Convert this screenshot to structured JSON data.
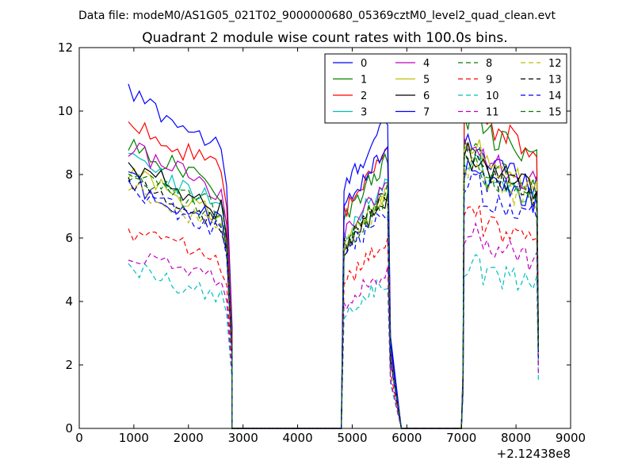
{
  "chart_data": {
    "type": "line",
    "suptitle": "Data file: modeM0/AS1G05_021T02_9000000680_05369cztM0_level2_quad_clean.evt",
    "title": "Quadrant 2 module wise count rates with 100.0s bins.",
    "xlabel": "",
    "ylabel": "",
    "x_offset_label": "+2.12438e8",
    "xlim": [
      0,
      9000
    ],
    "ylim": [
      0,
      12
    ],
    "xticks": [
      0,
      1000,
      2000,
      3000,
      4000,
      5000,
      6000,
      7000,
      8000,
      9000
    ],
    "yticks": [
      0,
      2,
      4,
      6,
      8,
      10,
      12
    ],
    "legend_location": "top-right",
    "legend_columns": 4,
    "segments": [
      {
        "start": 900,
        "end": 2700,
        "drop_start": 2800
      },
      {
        "start": 4850,
        "end": 5650,
        "drop_end": 5900
      },
      {
        "start": 7050,
        "end": 8400
      }
    ],
    "series": [
      {
        "name": "0",
        "color": "#0000ff",
        "dash": "solid",
        "levels": [
          10.6,
          9.7,
          8.5
        ]
      },
      {
        "name": "1",
        "color": "#008000",
        "dash": "solid",
        "levels": [
          9.0,
          8.5,
          9.3
        ]
      },
      {
        "name": "2",
        "color": "#ff0000",
        "dash": "solid",
        "levels": [
          9.7,
          8.7,
          9.6
        ]
      },
      {
        "name": "3",
        "color": "#00bfbf",
        "dash": "solid",
        "levels": [
          8.5,
          7.8,
          8.0
        ]
      },
      {
        "name": "4",
        "color": "#bf00bf",
        "dash": "solid",
        "levels": [
          8.9,
          7.8,
          8.5
        ]
      },
      {
        "name": "5",
        "color": "#bfbf00",
        "dash": "solid",
        "levels": [
          8.0,
          7.5,
          8.3
        ]
      },
      {
        "name": "6",
        "color": "#000000",
        "dash": "solid",
        "levels": [
          8.3,
          7.3,
          8.2
        ]
      },
      {
        "name": "7",
        "color": "#0000ff",
        "dash": "solid",
        "levels": [
          7.8,
          8.9,
          7.8
        ]
      },
      {
        "name": "8",
        "color": "#008000",
        "dash": "dashed",
        "levels": [
          8.0,
          7.3,
          8.0
        ]
      },
      {
        "name": "9",
        "color": "#ff0000",
        "dash": "dashed",
        "levels": [
          6.3,
          5.9,
          6.4
        ]
      },
      {
        "name": "10",
        "color": "#00bfbf",
        "dash": "dashed",
        "levels": [
          5.0,
          4.7,
          4.9
        ]
      },
      {
        "name": "11",
        "color": "#bf00bf",
        "dash": "dashed",
        "levels": [
          5.6,
          5.1,
          5.8
        ]
      },
      {
        "name": "12",
        "color": "#bfbf00",
        "dash": "dashed",
        "levels": [
          7.6,
          7.3,
          7.8
        ]
      },
      {
        "name": "13",
        "color": "#000000",
        "dash": "dashed",
        "levels": [
          7.8,
          7.4,
          8.0
        ]
      },
      {
        "name": "14",
        "color": "#0000ff",
        "dash": "dashed",
        "levels": [
          7.5,
          7.0,
          7.3
        ]
      },
      {
        "name": "15",
        "color": "#008000",
        "dash": "dashed",
        "levels": [
          8.2,
          7.5,
          8.3
        ]
      }
    ]
  }
}
